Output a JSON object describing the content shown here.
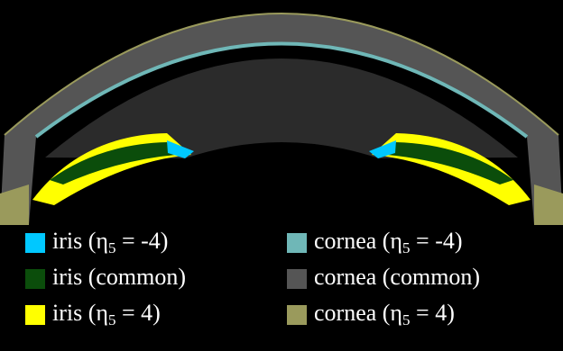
{
  "legend": [
    {
      "before": "iris (η",
      "sub": "5",
      "after": " = -4)",
      "color": "#00c8ff"
    },
    {
      "before": "iris (common)",
      "sub": "",
      "after": "",
      "color": "#0b4d0b"
    },
    {
      "before": "iris (η",
      "sub": "5",
      "after": " = 4)",
      "color": "#ffff00"
    },
    {
      "before": "cornea (η",
      "sub": "5",
      "after": " = -4)",
      "color": "#6fb7b7"
    },
    {
      "before": "cornea (common)",
      "sub": "",
      "after": "",
      "color": "#555555"
    },
    {
      "before": "cornea (η",
      "sub": "5",
      "after": " = 4)",
      "color": "#9a9a5c"
    }
  ]
}
